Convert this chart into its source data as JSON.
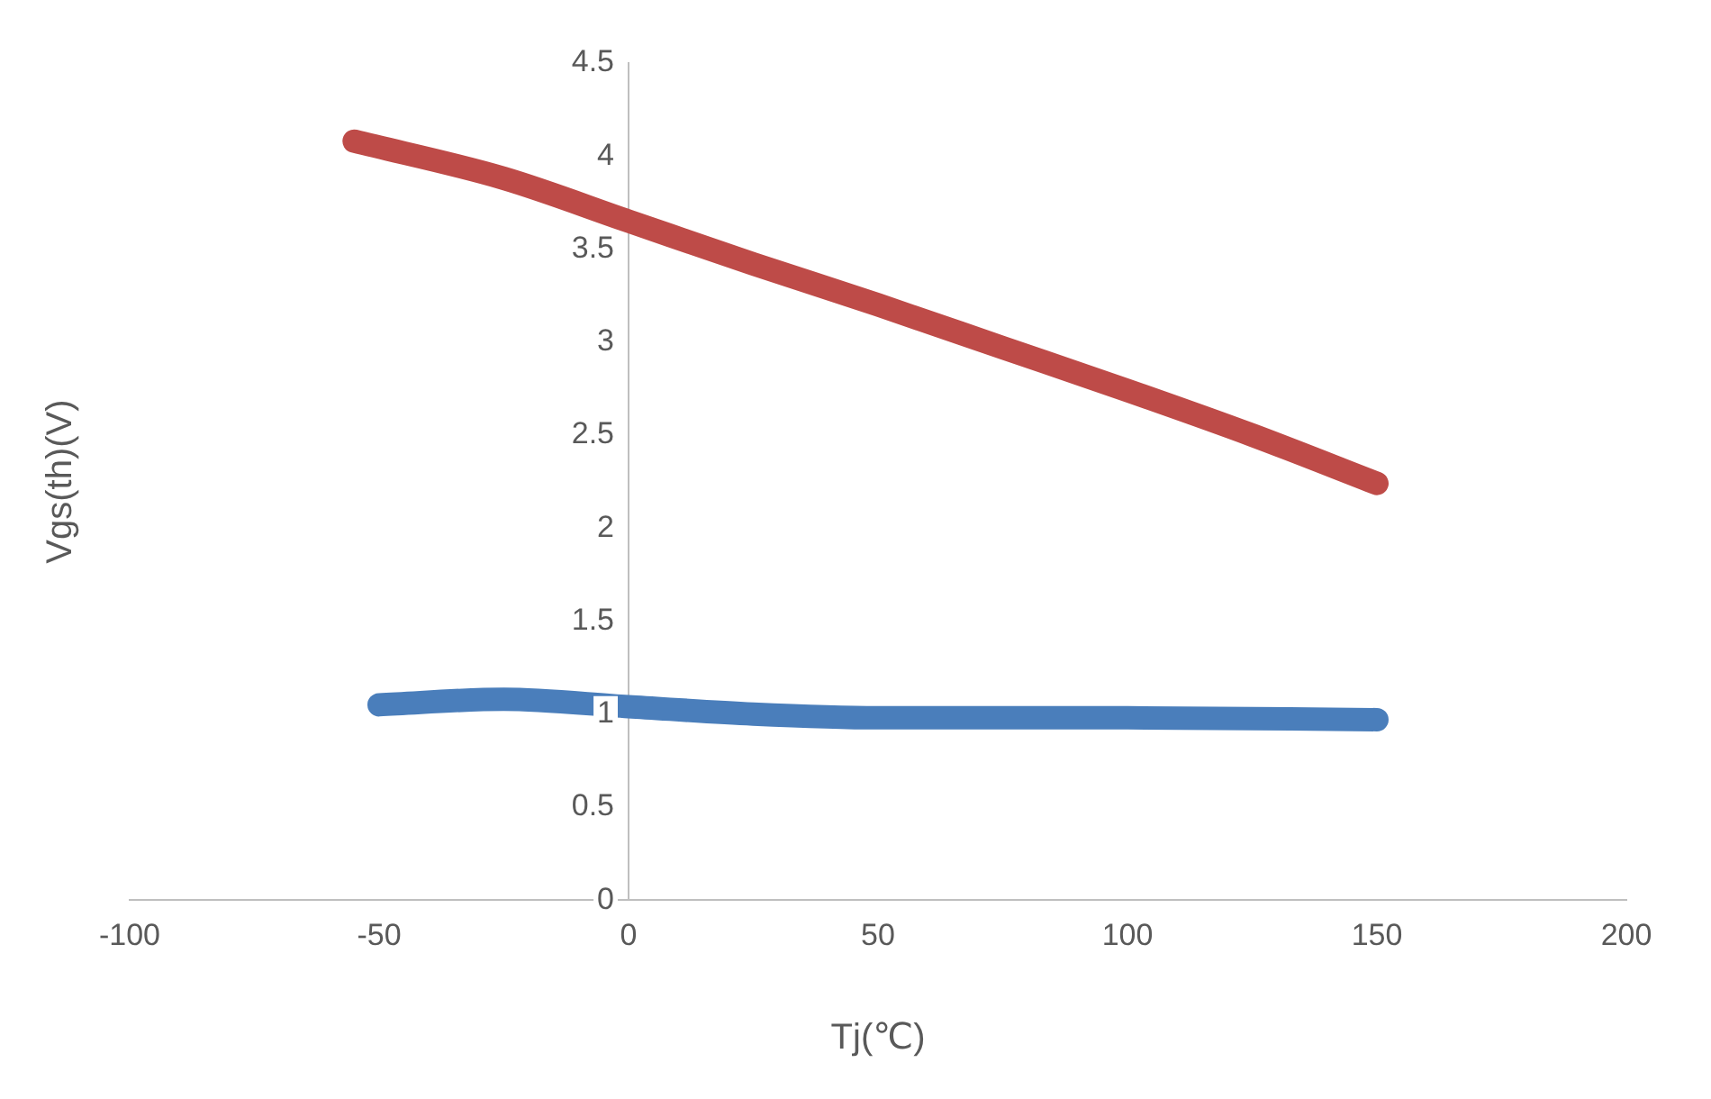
{
  "chart_data": {
    "type": "line",
    "xlabel": "Tj(℃)",
    "ylabel": "Vgs(th)(V)",
    "xlim": [
      -100,
      200
    ],
    "xticks": [
      -100,
      -50,
      0,
      50,
      100,
      150,
      200
    ],
    "ylim": [
      0,
      4.5
    ],
    "yticks": [
      0,
      0.5,
      1,
      1.5,
      2,
      2.5,
      3,
      3.5,
      4,
      4.5
    ],
    "series": [
      {
        "color": "#4a7ebb",
        "x": [
          -50,
          -25,
          0,
          25,
          50,
          100,
          150
        ],
        "values": [
          1.05,
          1.08,
          1.04,
          1.0,
          0.98,
          0.98,
          0.97
        ]
      },
      {
        "color": "#be4b48",
        "x": [
          -55,
          -25,
          0,
          25,
          50,
          75,
          100,
          125,
          150
        ],
        "values": [
          4.08,
          3.88,
          3.65,
          3.42,
          3.2,
          2.97,
          2.74,
          2.5,
          2.24
        ]
      }
    ],
    "grid": false,
    "legend": false,
    "marker": "none",
    "line_style": "solid"
  }
}
